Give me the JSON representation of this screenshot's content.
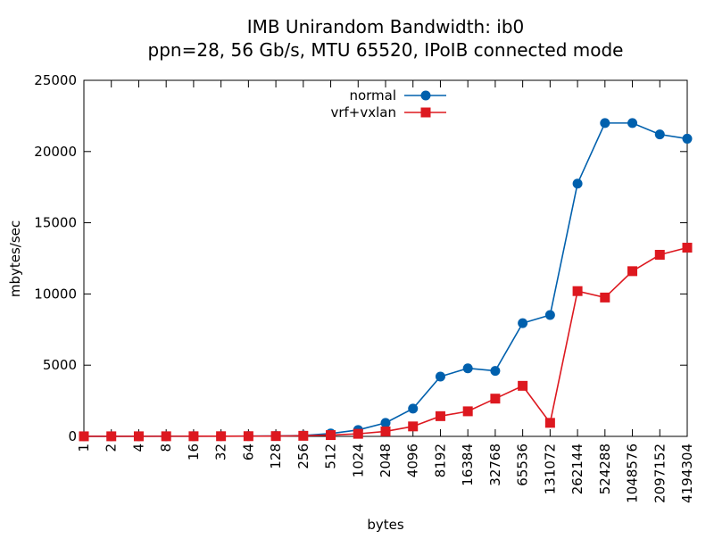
{
  "chart_data": {
    "type": "line",
    "title": "IMB Unirandom Bandwidth: ib0",
    "subtitle": "ppn=28, 56 Gb/s, MTU 65520, IPoIB connected mode",
    "xlabel": "bytes",
    "ylabel": "mbytes/sec",
    "ylim": [
      0,
      25000
    ],
    "yticks": [
      0,
      5000,
      10000,
      15000,
      20000,
      25000
    ],
    "categories": [
      "1",
      "2",
      "4",
      "8",
      "16",
      "32",
      "64",
      "128",
      "256",
      "512",
      "1024",
      "2048",
      "4096",
      "8192",
      "16384",
      "32768",
      "65536",
      "131072",
      "262144",
      "524288",
      "1048576",
      "2097152",
      "4194304"
    ],
    "legend_position": "top-center",
    "grid": false,
    "series": [
      {
        "name": "normal",
        "color": "#0060ad",
        "marker": "circle",
        "values": [
          5,
          6,
          8,
          10,
          12,
          15,
          20,
          30,
          60,
          200,
          450,
          950,
          1950,
          4200,
          4780,
          4600,
          7950,
          8520,
          17750,
          22000,
          22000,
          21200,
          20900
        ]
      },
      {
        "name": "vrf+vxlan",
        "color": "#dd181f",
        "marker": "square",
        "values": [
          5,
          6,
          7,
          8,
          10,
          12,
          15,
          20,
          40,
          90,
          180,
          350,
          700,
          1420,
          1760,
          2650,
          3550,
          950,
          10200,
          9750,
          11600,
          12750,
          13250
        ]
      }
    ]
  }
}
